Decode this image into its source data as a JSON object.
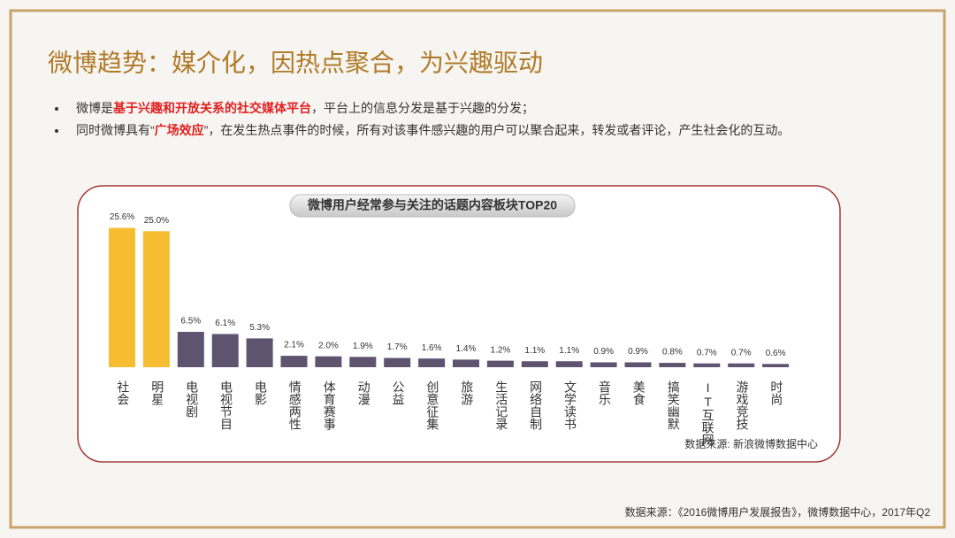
{
  "header": {
    "title": "微博趋势：媒介化，因热点聚合，为兴趣驱动"
  },
  "bullets": [
    [
      {
        "text": "微博是",
        "highlight": false
      },
      {
        "text": "基于兴趣和开放关系的社交媒体平台",
        "highlight": true
      },
      {
        "text": "，平台上的信息分发是基于兴趣的分发；",
        "highlight": false
      }
    ],
    [
      {
        "text": "同时微博具有“",
        "highlight": false
      },
      {
        "text": "广场效应",
        "highlight": true
      },
      {
        "text": "”，在发生热点事件的时候，所有对该事件感兴趣的用户可以聚合起来，转发或者评论，产生社会化的互动。",
        "highlight": false
      }
    ]
  ],
  "chart_data": {
    "type": "bar",
    "title": "微博用户经常参与关注的话题内容板块TOP20",
    "categories": [
      "社会",
      "明星",
      "电视剧",
      "电视节目",
      "电影",
      "情感两性",
      "体育赛事",
      "动漫",
      "公益",
      "创意征集",
      "旅游",
      "生活记录",
      "网络自制",
      "文学读书",
      "音乐",
      "美食",
      "搞笑幽默",
      "IT互联网",
      "游戏竞技",
      "时尚"
    ],
    "values": [
      25.6,
      25.0,
      6.5,
      6.1,
      5.3,
      2.1,
      2.0,
      1.9,
      1.7,
      1.6,
      1.4,
      1.2,
      1.1,
      1.1,
      0.9,
      0.9,
      0.8,
      0.7,
      0.7,
      0.6
    ],
    "value_labels": [
      "25.6%",
      "25.0%",
      "6.5%",
      "6.1%",
      "5.3%",
      "2.1%",
      "2.0%",
      "1.9%",
      "1.7%",
      "1.6%",
      "1.4%",
      "1.2%",
      "1.1%",
      "1.1%",
      "0.9%",
      "0.9%",
      "0.8%",
      "0.7%",
      "0.7%",
      "0.6%"
    ],
    "colors": [
      "#f6bd33",
      "#f6bd33",
      "#5f5470",
      "#5f5470",
      "#5f5470",
      "#5f5470",
      "#5f5470",
      "#5f5470",
      "#5f5470",
      "#5f5470",
      "#5f5470",
      "#5f5470",
      "#5f5470",
      "#5f5470",
      "#5f5470",
      "#5f5470",
      "#5f5470",
      "#5f5470",
      "#5f5470",
      "#5f5470"
    ],
    "source": "数据来源: 新浪微博数据中心"
  },
  "footer": {
    "source": "数据来源：《2016微博用户发展报告》，微博数据中心，2017年Q2"
  }
}
